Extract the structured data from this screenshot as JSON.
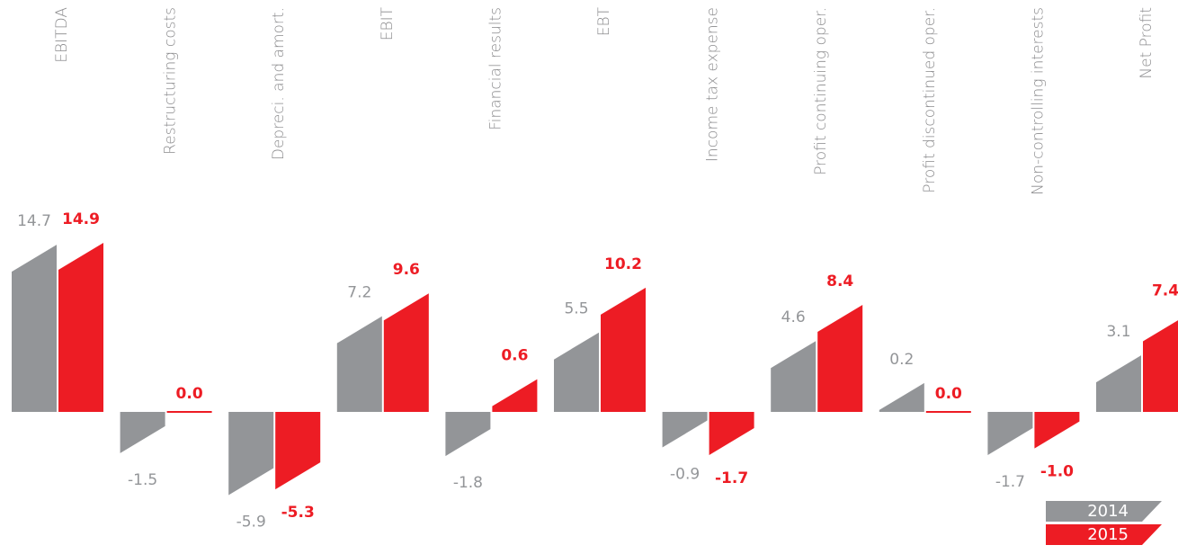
{
  "chart_data": {
    "type": "bar",
    "categories": [
      "EBITDA",
      "Restructuring costs",
      "Depreci. and amort.",
      "EBIT",
      "Financial results",
      "EBT",
      "Income tax expense",
      "Profit continuing oper.",
      "Profit discontinued oper.",
      "Non-controlling interests",
      "Net Profit"
    ],
    "series": [
      {
        "name": "2014",
        "color": "#939598",
        "values": [
          14.7,
          -1.5,
          -5.9,
          7.2,
          -1.8,
          5.5,
          -0.9,
          4.6,
          0.2,
          -1.7,
          3.1
        ],
        "value_labels": [
          "14.7",
          "-1.5",
          "-5.9",
          "7.2",
          "-1.8",
          "5.5",
          "-0.9",
          "4.6",
          "0.2",
          "-1.7",
          "3.1"
        ]
      },
      {
        "name": "2015",
        "color": "#ed1c24",
        "values": [
          14.9,
          0.0,
          -5.3,
          9.6,
          0.6,
          10.2,
          -1.7,
          8.4,
          0.0,
          -1.0,
          7.4
        ],
        "value_labels": [
          "14.9",
          "0.0",
          "-5.3",
          "9.6",
          "0.6",
          "10.2",
          "-1.7",
          "8.4",
          "0.0",
          "-1.0",
          "7.4"
        ]
      }
    ],
    "legend": "bottom-right"
  }
}
